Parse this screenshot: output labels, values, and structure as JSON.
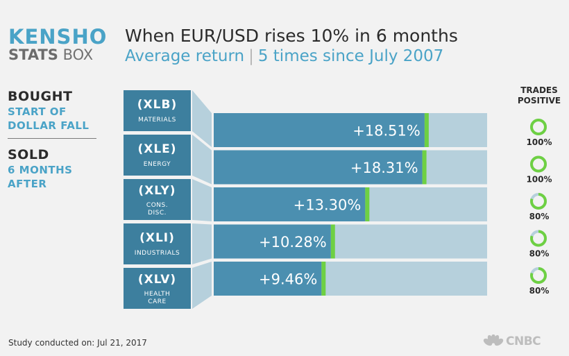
{
  "logo": {
    "top": "KENSHO",
    "bottom_bold": "STATS",
    "bottom_light": "BOX"
  },
  "title": "When EUR/USD rises 10% in 6 months",
  "subtitle": {
    "left": "Average return",
    "right": "5 times since July 2007"
  },
  "sidebar": {
    "bought_head": "BOUGHT",
    "bought_sub": [
      "START OF",
      "DOLLAR FALL"
    ],
    "sold_head": "SOLD",
    "sold_sub": [
      "6 MONTHS",
      "AFTER"
    ]
  },
  "trades_header": [
    "TRADES",
    "POSITIVE"
  ],
  "footer": "Study conducted on: Jul 21, 2017",
  "brand": "CNBC",
  "colors": {
    "bar": "#4b8fb0",
    "bar_bg": "#b6d0dc",
    "green": "#6ed043",
    "ticker_box": "#3d7f9e",
    "connector": "#b6d0dc",
    "accent": "#4aa3c7"
  },
  "chart_data": {
    "type": "bar",
    "orientation": "horizontal",
    "categories": [
      "(XLB)",
      "(XLE)",
      "(XLY)",
      "(XLI)",
      "(XLV)"
    ],
    "sector_names": [
      [
        "MATERIALS"
      ],
      [
        "ENERGY"
      ],
      [
        "CONS.",
        "DISC."
      ],
      [
        "INDUSTRIALS"
      ],
      [
        "HEALTH",
        "CARE"
      ]
    ],
    "values": [
      18.51,
      18.31,
      13.3,
      10.28,
      9.46
    ],
    "value_labels": [
      "+18.51%",
      "+18.31%",
      "+13.30%",
      "+10.28%",
      "+9.46%"
    ],
    "trades_positive": [
      100,
      100,
      80,
      80,
      80
    ],
    "trades_positive_labels": [
      "100%",
      "100%",
      "80%",
      "80%",
      "80%"
    ],
    "xlim": [
      0,
      24
    ]
  }
}
